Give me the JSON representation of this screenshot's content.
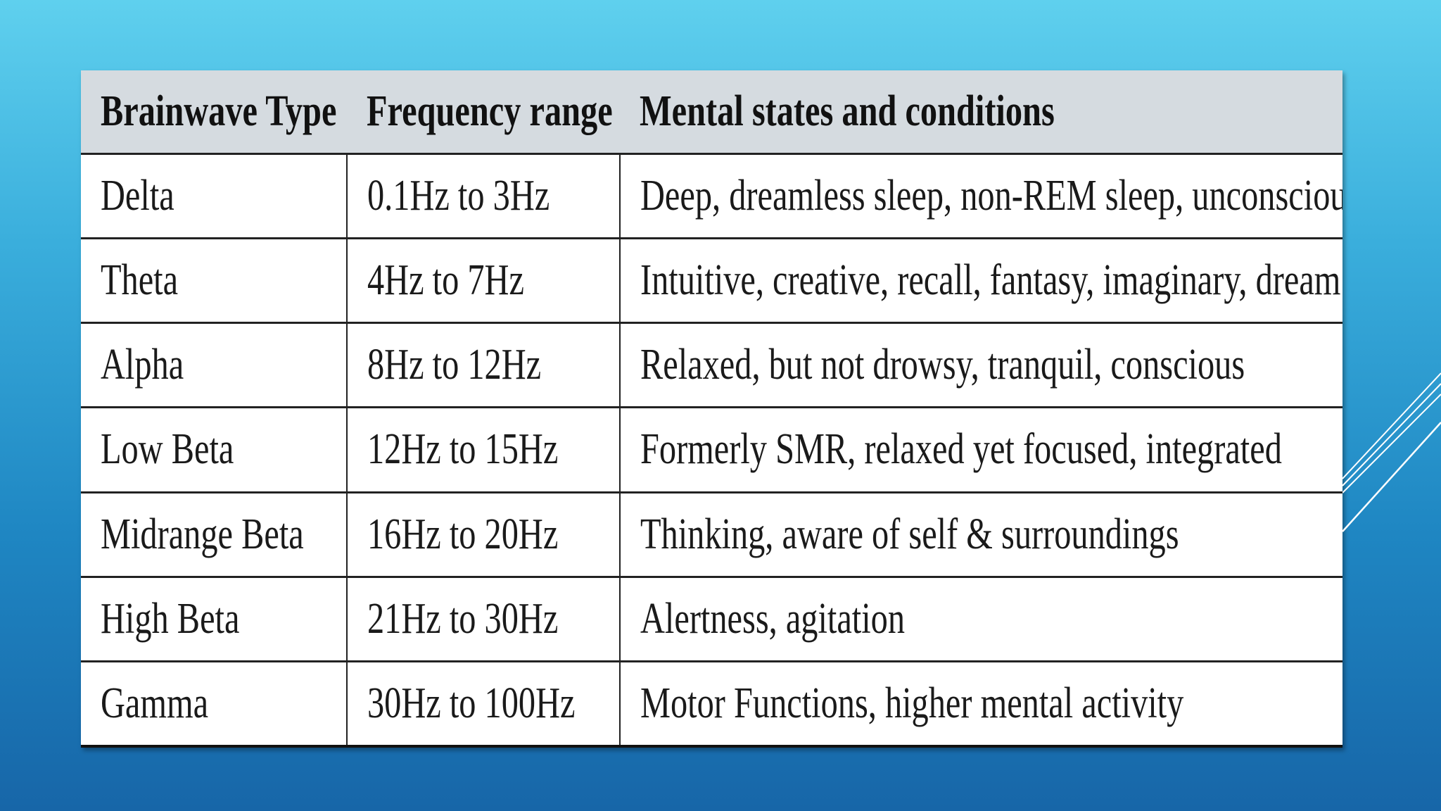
{
  "table": {
    "headers": [
      "Brainwave Type",
      "Frequency range",
      "Mental states and conditions"
    ],
    "rows": [
      [
        "Delta",
        "0.1Hz to 3Hz",
        "Deep, dreamless sleep, non-REM sleep, unconscious"
      ],
      [
        "Theta",
        "4Hz to 7Hz",
        "Intuitive, creative, recall, fantasy, imaginary, dream"
      ],
      [
        "Alpha",
        "8Hz to 12Hz",
        "Relaxed, but not drowsy, tranquil, conscious"
      ],
      [
        "Low Beta",
        "12Hz to 15Hz",
        "Formerly SMR, relaxed yet focused, integrated"
      ],
      [
        "Midrange Beta",
        "16Hz to 20Hz",
        "Thinking, aware of self & surroundings"
      ],
      [
        "High Beta",
        "21Hz to 30Hz",
        "Alertness, agitation"
      ],
      [
        "Gamma",
        "30Hz to 100Hz",
        "Motor Functions, higher mental activity"
      ]
    ]
  },
  "colors": {
    "background_top": "#5fd0ee",
    "background_bottom": "#1766a8",
    "header_fill": "#d5dbe0",
    "border": "#222222",
    "deco_lines": "#ffffff"
  }
}
